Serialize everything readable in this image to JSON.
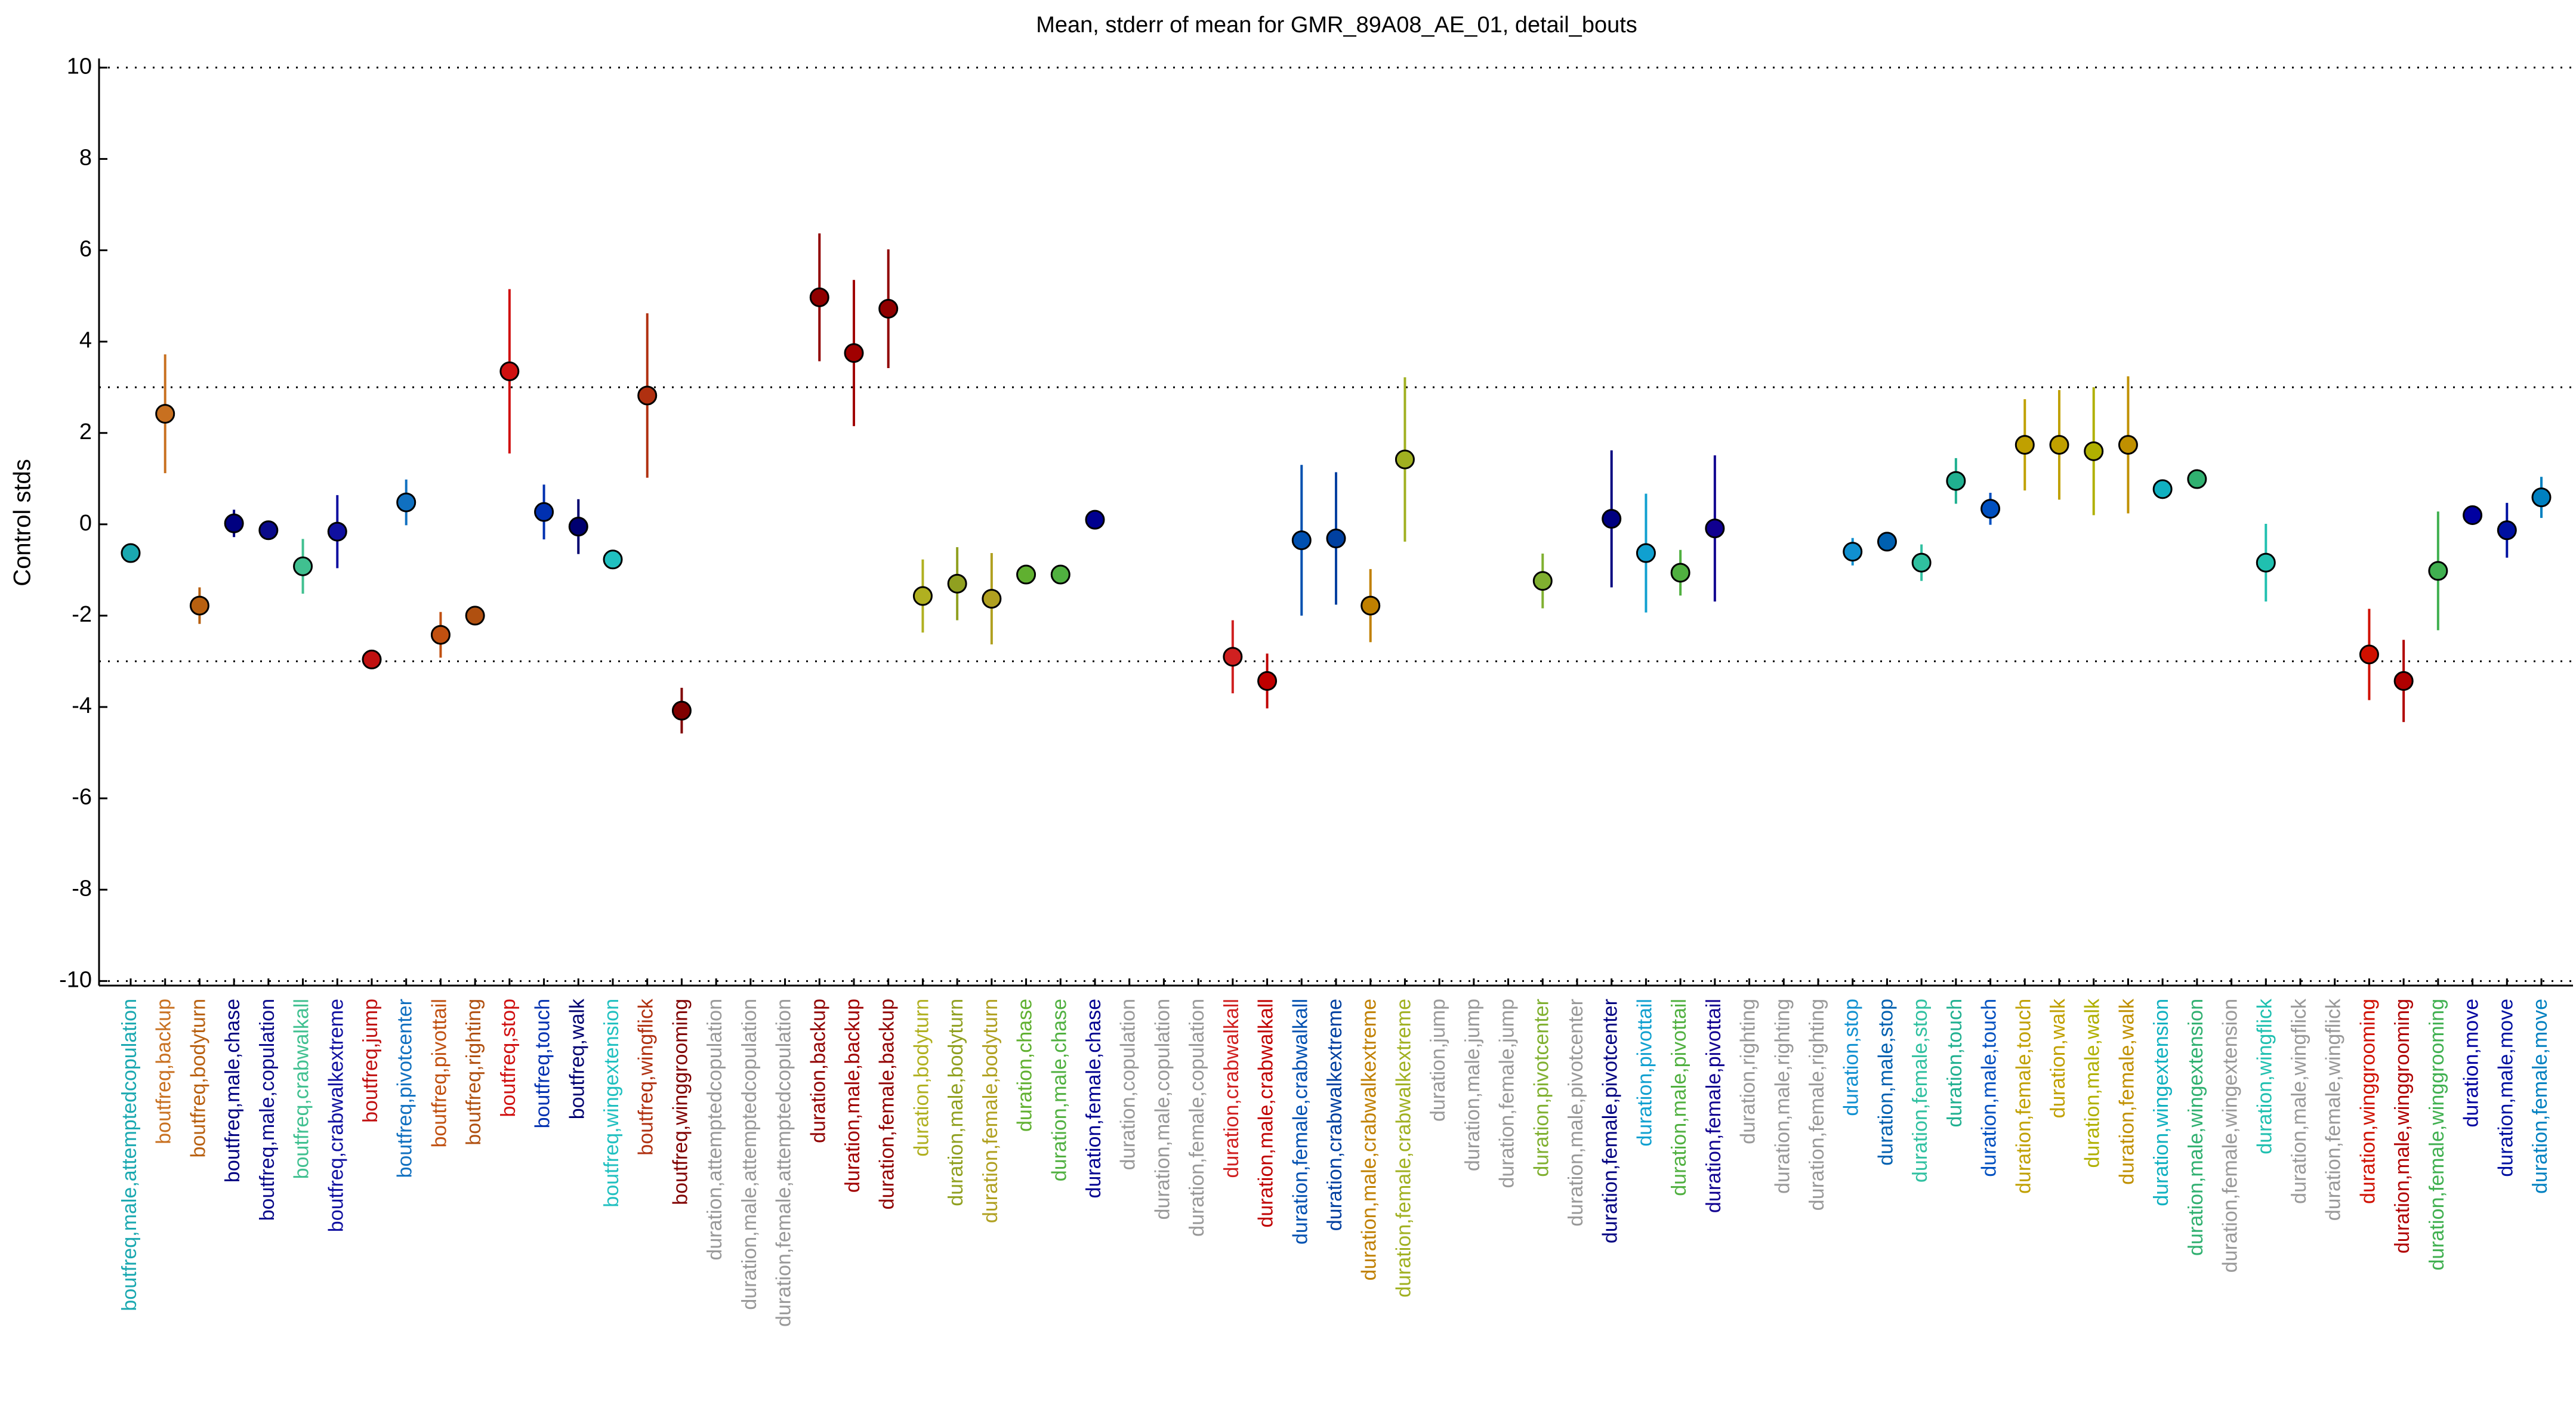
{
  "chart_data": {
    "type": "errorbar",
    "title": "Mean, stderr of mean for GMR_89A08_AE_01, detail_bouts",
    "ylabel": "Control stds",
    "categories": [
      "boutfreq,male,attemptedcopulation",
      "boutfreq,backup",
      "boutfreq,bodyturn",
      "boutfreq,male,chase",
      "boutfreq,male,copulation",
      "boutfreq,crabwalkall",
      "boutfreq,crabwalkextreme",
      "boutfreq,jump",
      "boutfreq,pivotcenter",
      "boutfreq,pivottail",
      "boutfreq,righting",
      "boutfreq,stop",
      "boutfreq,touch",
      "boutfreq,walk",
      "boutfreq,wingextension",
      "boutfreq,wingflick",
      "boutfreq,winggrooming",
      "duration,attemptedcopulation",
      "duration,male,attemptedcopulation",
      "duration,female,attemptedcopulation",
      "duration,backup",
      "duration,male,backup",
      "duration,female,backup",
      "duration,bodyturn",
      "duration,male,bodyturn",
      "duration,female,bodyturn",
      "duration,chase",
      "duration,male,chase",
      "duration,female,chase",
      "duration,copulation",
      "duration,male,copulation",
      "duration,female,copulation",
      "duration,crabwalkall",
      "duration,male,crabwalkall",
      "duration,female,crabwalkall",
      "duration,crabwalkextreme",
      "duration,male,crabwalkextreme",
      "duration,female,crabwalkextreme",
      "duration,jump",
      "duration,male,jump",
      "duration,female,jump",
      "duration,pivotcenter",
      "duration,male,pivotcenter",
      "duration,female,pivotcenter",
      "duration,pivottail",
      "duration,male,pivottail",
      "duration,female,pivottail",
      "duration,righting",
      "duration,male,righting",
      "duration,female,righting",
      "duration,stop",
      "duration,male,stop",
      "duration,female,stop",
      "duration,touch",
      "duration,male,touch",
      "duration,female,touch",
      "duration,walk",
      "duration,male,walk",
      "duration,female,walk",
      "duration,wingextension",
      "duration,male,wingextension",
      "duration,female,wingextension",
      "duration,wingflick",
      "duration,male,wingflick",
      "duration,female,wingflick",
      "duration,winggrooming",
      "duration,male,winggrooming",
      "duration,female,winggrooming",
      "duration,move",
      "duration,male,move",
      "duration,female,move"
    ],
    "values": [
      -0.63,
      2.42,
      -1.78,
      0.02,
      -0.13,
      -0.92,
      -0.16,
      -2.96,
      0.48,
      -2.42,
      -2.0,
      3.35,
      0.27,
      -0.05,
      -0.77,
      2.82,
      -4.08,
      null,
      null,
      null,
      4.97,
      3.75,
      4.72,
      -1.57,
      -1.3,
      -1.63,
      -1.1,
      -1.1,
      0.1,
      null,
      null,
      null,
      -2.9,
      -3.43,
      -0.35,
      -0.31,
      -1.78,
      1.42,
      null,
      null,
      null,
      -1.24,
      null,
      0.12,
      -0.63,
      -1.06,
      -0.09,
      null,
      null,
      null,
      -0.6,
      -0.38,
      -0.84,
      0.95,
      0.34,
      1.74,
      1.74,
      1.6,
      1.74,
      0.77,
      0.99,
      null,
      -0.84,
      null,
      null,
      -2.85,
      -3.43,
      -1.02,
      0.2,
      -0.13,
      0.59
    ],
    "errors": [
      0.2,
      1.3,
      0.4,
      0.3,
      0.1,
      0.6,
      0.8,
      0.1,
      0.5,
      0.5,
      0.1,
      1.8,
      0.6,
      0.6,
      0.15,
      1.8,
      0.5,
      null,
      null,
      null,
      1.4,
      1.6,
      1.3,
      0.8,
      0.8,
      1.0,
      0.2,
      0.2,
      0.2,
      null,
      null,
      null,
      0.8,
      0.6,
      1.65,
      1.45,
      0.8,
      1.8,
      null,
      null,
      null,
      0.6,
      null,
      1.5,
      1.3,
      0.5,
      1.6,
      null,
      null,
      null,
      0.3,
      0.15,
      0.4,
      0.5,
      0.35,
      1.0,
      1.2,
      1.4,
      1.5,
      0.2,
      0.2,
      null,
      0.85,
      null,
      null,
      1.0,
      0.9,
      1.3,
      0.2,
      0.6,
      0.45
    ],
    "colors": [
      "#1aa8b0",
      "#c87020",
      "#b86010",
      "#000080",
      "#0a0a8a",
      "#40c090",
      "#1010a0",
      "#c01010",
      "#1070c0",
      "#c05010",
      "#b05010",
      "#d01010",
      "#0030b0",
      "#000070",
      "#20c0c0",
      "#b03010",
      "#800000",
      "#999999",
      "#999999",
      "#999999",
      "#900000",
      "#a00000",
      "#900000",
      "#b0b020",
      "#90a020",
      "#b0a020",
      "#60b030",
      "#50b040",
      "#000090",
      "#999999",
      "#999999",
      "#999999",
      "#d02020",
      "#c00000",
      "#0050b0",
      "#0040a0",
      "#c08000",
      "#a0b020",
      "#999999",
      "#999999",
      "#999999",
      "#80b030",
      "#999999",
      "#000080",
      "#10a0d0",
      "#50b040",
      "#100090",
      "#999999",
      "#999999",
      "#999999",
      "#1090d0",
      "#0060b0",
      "#30c0a0",
      "#20b090",
      "#0050c0",
      "#c0a000",
      "#c0a000",
      "#b0b000",
      "#c09000",
      "#10b0c0",
      "#30b070",
      "#999999",
      "#20c0b0",
      "#999999",
      "#999999",
      "#d01000",
      "#b00000",
      "#40b050",
      "#0000a0",
      "#0010a0",
      "#0080c0"
    ],
    "ylim": [
      -10.1,
      10.2
    ],
    "yticks": [
      -10,
      -8,
      -6,
      -4,
      -2,
      0,
      2,
      4,
      6,
      8,
      10
    ],
    "reference_lines": [
      -10,
      -3,
      3,
      10
    ]
  }
}
